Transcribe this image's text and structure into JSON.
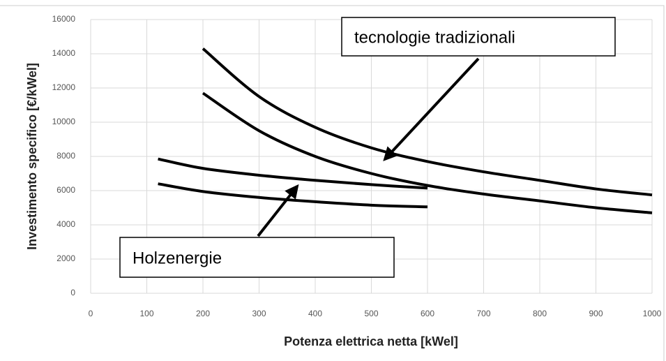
{
  "chart_data": {
    "type": "line",
    "xlabel": "Potenza elettrica netta [kWel]",
    "ylabel": "Investimento specifico [€/kWel]",
    "xlim": [
      0,
      1000
    ],
    "xticks": [
      0,
      100,
      200,
      300,
      400,
      500,
      600,
      700,
      800,
      900,
      1000
    ],
    "ylim": [
      0,
      16000
    ],
    "yticks": [
      0,
      2000,
      4000,
      6000,
      8000,
      10000,
      12000,
      14000,
      16000
    ],
    "grid": true,
    "series": [
      {
        "color": "#000000",
        "x": [
          200,
          300,
          400,
          500,
          600,
          700,
          800,
          900,
          1000
        ],
        "values": [
          14300,
          11500,
          9700,
          8500,
          7700,
          7100,
          6600,
          6100,
          5750
        ]
      },
      {
        "color": "#000000",
        "x": [
          200,
          300,
          400,
          500,
          600,
          700,
          800,
          900,
          1000
        ],
        "values": [
          11700,
          9500,
          8000,
          7000,
          6300,
          5800,
          5400,
          5000,
          4700
        ]
      },
      {
        "color": "#000000",
        "x": [
          120,
          200,
          300,
          400,
          500,
          600
        ],
        "values": [
          7850,
          7300,
          6900,
          6600,
          6350,
          6150
        ]
      },
      {
        "color": "#000000",
        "x": [
          120,
          200,
          300,
          400,
          500,
          600
        ],
        "values": [
          6400,
          5950,
          5600,
          5350,
          5150,
          5050
        ]
      }
    ],
    "annotations": [
      "tecnologie tradizionali",
      "Holzenergie"
    ]
  }
}
